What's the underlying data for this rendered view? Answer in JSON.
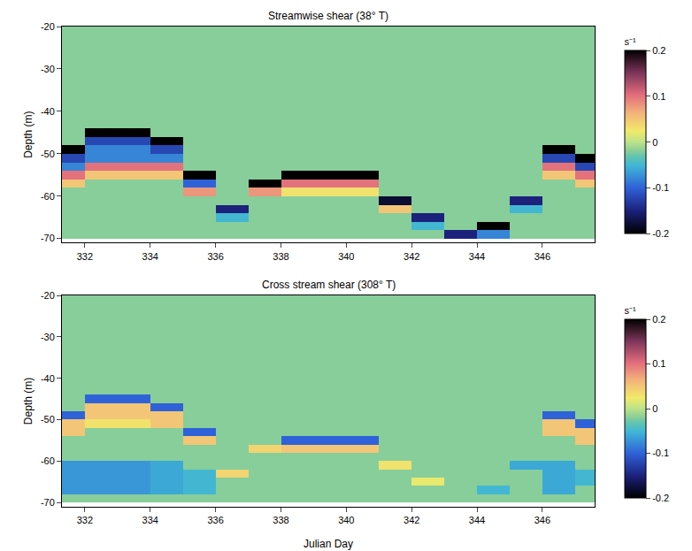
{
  "chart_data": [
    {
      "type": "heatmap",
      "title": "Streamwise shear (38° T)",
      "y_label": "Depth (m)",
      "x": [
        331.5,
        332.5,
        333.5,
        334.5,
        335.5,
        336.5,
        337.5,
        338.5,
        339.5,
        340.5,
        341.5,
        342.5,
        343.5,
        344.5,
        345.5,
        346.5,
        347.5
      ],
      "y": [
        -69,
        -67,
        -65,
        -63,
        -61,
        -59,
        -57,
        -55,
        -53,
        -51,
        -49,
        -47,
        -45,
        -43,
        -41,
        -39,
        -37,
        -35,
        -33,
        -31,
        -29,
        -27,
        -25,
        -23,
        -21
      ],
      "z": [
        [
          -0.02,
          -0.02,
          -0.02,
          -0.02,
          -0.02,
          -0.02,
          -0.02,
          -0.02,
          -0.02,
          -0.02,
          -0.02,
          -0.02,
          -0.15,
          -0.08,
          -0.02,
          -0.02,
          -0.02
        ],
        [
          -0.02,
          -0.02,
          -0.02,
          -0.02,
          -0.02,
          -0.02,
          -0.02,
          -0.02,
          -0.02,
          -0.02,
          -0.02,
          -0.05,
          -0.02,
          -0.2,
          -0.02,
          -0.02,
          -0.02
        ],
        [
          -0.02,
          -0.02,
          -0.02,
          -0.02,
          -0.02,
          -0.05,
          -0.02,
          -0.02,
          -0.02,
          -0.02,
          -0.02,
          -0.15,
          -0.02,
          -0.02,
          -0.02,
          -0.02,
          -0.02
        ],
        [
          -0.02,
          -0.02,
          -0.02,
          -0.02,
          -0.02,
          -0.15,
          -0.02,
          -0.02,
          -0.02,
          -0.02,
          0.05,
          -0.02,
          -0.02,
          -0.02,
          -0.05,
          -0.02,
          -0.02
        ],
        [
          -0.02,
          -0.02,
          -0.02,
          -0.02,
          -0.02,
          -0.02,
          -0.02,
          -0.02,
          -0.02,
          -0.02,
          -0.18,
          -0.02,
          -0.02,
          -0.02,
          -0.15,
          -0.02,
          -0.02
        ],
        [
          -0.02,
          -0.02,
          -0.02,
          -0.02,
          0.08,
          -0.02,
          0.08,
          0.03,
          0.03,
          0.03,
          -0.02,
          -0.02,
          -0.02,
          -0.02,
          -0.02,
          -0.02,
          -0.02
        ],
        [
          0.05,
          -0.02,
          -0.02,
          -0.02,
          -0.1,
          -0.02,
          -0.2,
          0.1,
          0.1,
          0.1,
          -0.02,
          -0.02,
          -0.02,
          -0.02,
          -0.02,
          -0.02,
          0.05
        ],
        [
          0.1,
          0.05,
          0.05,
          0.05,
          -0.2,
          -0.02,
          -0.02,
          -0.2,
          -0.2,
          -0.2,
          -0.02,
          -0.02,
          -0.02,
          -0.02,
          -0.02,
          0.05,
          0.1
        ],
        [
          -0.08,
          0.1,
          0.1,
          0.1,
          -0.02,
          -0.02,
          -0.02,
          -0.02,
          -0.02,
          -0.02,
          -0.02,
          -0.02,
          -0.02,
          -0.02,
          -0.02,
          0.1,
          -0.12
        ],
        [
          -0.12,
          -0.08,
          -0.08,
          -0.08,
          -0.02,
          -0.02,
          -0.02,
          -0.02,
          -0.02,
          -0.02,
          -0.02,
          -0.02,
          -0.02,
          -0.02,
          -0.02,
          -0.12,
          -0.2
        ],
        [
          -0.2,
          -0.08,
          -0.08,
          -0.12,
          -0.02,
          -0.02,
          -0.02,
          -0.02,
          -0.02,
          -0.02,
          -0.02,
          -0.02,
          -0.02,
          -0.02,
          -0.02,
          -0.2,
          -0.02
        ],
        [
          -0.02,
          -0.12,
          -0.12,
          -0.2,
          -0.02,
          -0.02,
          -0.02,
          -0.02,
          -0.02,
          -0.02,
          -0.02,
          -0.02,
          -0.02,
          -0.02,
          -0.02,
          -0.02,
          -0.02
        ],
        [
          -0.02,
          -0.2,
          -0.2,
          -0.02,
          -0.02,
          -0.02,
          -0.02,
          -0.02,
          -0.02,
          -0.02,
          -0.02,
          -0.02,
          -0.02,
          -0.02,
          -0.02,
          -0.02,
          -0.02
        ],
        [
          -0.02,
          -0.02,
          -0.02,
          -0.02,
          -0.02,
          -0.02,
          -0.02,
          -0.02,
          -0.02,
          -0.02,
          -0.02,
          -0.02,
          -0.02,
          -0.02,
          -0.02,
          -0.02,
          -0.02
        ],
        [
          -0.02,
          -0.02,
          -0.02,
          -0.02,
          -0.02,
          -0.02,
          -0.02,
          -0.02,
          -0.02,
          -0.02,
          -0.02,
          -0.02,
          -0.02,
          -0.02,
          -0.02,
          -0.02,
          -0.02
        ],
        [
          -0.02,
          -0.02,
          -0.02,
          -0.02,
          -0.02,
          -0.02,
          -0.02,
          -0.02,
          -0.02,
          -0.02,
          -0.02,
          -0.02,
          -0.02,
          -0.02,
          -0.02,
          -0.02,
          -0.02
        ],
        [
          -0.02,
          -0.02,
          -0.02,
          -0.02,
          -0.02,
          -0.02,
          -0.02,
          -0.02,
          -0.02,
          -0.02,
          -0.02,
          -0.02,
          -0.02,
          -0.02,
          -0.02,
          -0.02,
          -0.02
        ],
        [
          -0.02,
          -0.02,
          -0.02,
          -0.02,
          -0.02,
          -0.02,
          -0.02,
          -0.02,
          -0.02,
          -0.02,
          -0.02,
          -0.02,
          -0.02,
          -0.02,
          -0.02,
          -0.02,
          -0.02
        ],
        [
          -0.02,
          -0.02,
          -0.02,
          -0.02,
          -0.02,
          -0.02,
          -0.02,
          -0.02,
          -0.02,
          -0.02,
          -0.02,
          -0.02,
          -0.02,
          -0.02,
          -0.02,
          -0.02,
          -0.02
        ],
        [
          -0.02,
          -0.02,
          -0.02,
          -0.02,
          -0.02,
          -0.02,
          -0.02,
          -0.02,
          -0.02,
          -0.02,
          -0.02,
          -0.02,
          -0.02,
          -0.02,
          -0.02,
          -0.02,
          -0.02
        ],
        [
          -0.02,
          -0.02,
          -0.02,
          -0.02,
          -0.02,
          -0.02,
          -0.02,
          -0.02,
          -0.02,
          -0.02,
          -0.02,
          -0.02,
          -0.02,
          -0.02,
          -0.02,
          -0.02,
          -0.02
        ],
        [
          -0.02,
          -0.02,
          -0.02,
          -0.02,
          -0.02,
          -0.02,
          -0.02,
          -0.02,
          -0.02,
          -0.02,
          -0.02,
          -0.02,
          -0.02,
          -0.02,
          -0.02,
          -0.02,
          -0.02
        ],
        [
          -0.02,
          -0.02,
          -0.02,
          -0.02,
          -0.02,
          -0.02,
          -0.02,
          -0.02,
          -0.02,
          -0.02,
          -0.02,
          -0.02,
          -0.02,
          -0.02,
          -0.02,
          -0.02,
          -0.02
        ],
        [
          -0.02,
          -0.02,
          -0.02,
          -0.02,
          -0.02,
          -0.02,
          -0.02,
          -0.02,
          -0.02,
          -0.02,
          -0.02,
          -0.02,
          -0.02,
          -0.02,
          -0.02,
          -0.02,
          -0.02
        ],
        [
          -0.02,
          -0.02,
          -0.02,
          -0.02,
          -0.02,
          -0.02,
          -0.02,
          -0.02,
          -0.02,
          -0.02,
          -0.02,
          -0.02,
          -0.02,
          -0.02,
          -0.02,
          -0.02,
          -0.02
        ]
      ],
      "xlim": [
        331.3,
        347.6
      ],
      "xticks": [
        332,
        334,
        336,
        338,
        340,
        342,
        344,
        346
      ],
      "ylim": [
        -71,
        -20
      ],
      "yticks": [
        -70,
        -60,
        -50,
        -40,
        -30,
        -20
      ],
      "colorbar_range": [
        -0.2,
        0.2
      ],
      "colorbar_ticks": [
        -0.2,
        -0.1,
        0,
        0.1,
        0.2
      ],
      "colorbar_title": "s⁻¹"
    },
    {
      "type": "heatmap",
      "title": "Cross stream shear (308° T)",
      "y_label": "Depth (m)",
      "x_label": "Julian Day",
      "x": [
        331.5,
        332.5,
        333.5,
        334.5,
        335.5,
        336.5,
        337.5,
        338.5,
        339.5,
        340.5,
        341.5,
        342.5,
        343.5,
        344.5,
        345.5,
        346.5,
        347.5
      ],
      "y": [
        -69,
        -67,
        -65,
        -63,
        -61,
        -59,
        -57,
        -55,
        -53,
        -51,
        -49,
        -47,
        -45,
        -43,
        -41,
        -39,
        -37,
        -35,
        -33,
        -31,
        -29,
        -27,
        -25,
        -23,
        -21
      ],
      "z": [
        [
          -0.02,
          -0.02,
          -0.02,
          -0.02,
          -0.02,
          -0.02,
          -0.02,
          -0.02,
          -0.02,
          -0.02,
          -0.02,
          -0.02,
          -0.02,
          -0.02,
          -0.02,
          -0.02,
          -0.02
        ],
        [
          -0.07,
          -0.07,
          -0.07,
          -0.06,
          -0.05,
          -0.02,
          -0.02,
          -0.02,
          -0.02,
          -0.02,
          -0.02,
          -0.02,
          -0.02,
          -0.05,
          -0.02,
          -0.06,
          -0.02
        ],
        [
          -0.07,
          -0.07,
          -0.07,
          -0.06,
          -0.05,
          -0.02,
          -0.02,
          -0.02,
          -0.02,
          -0.02,
          -0.02,
          0.02,
          -0.02,
          -0.02,
          -0.02,
          -0.06,
          -0.05
        ],
        [
          -0.07,
          -0.07,
          -0.07,
          -0.06,
          -0.05,
          0.04,
          -0.02,
          -0.02,
          -0.02,
          -0.02,
          -0.02,
          -0.02,
          -0.02,
          -0.02,
          -0.02,
          -0.06,
          -0.05
        ],
        [
          -0.07,
          -0.07,
          -0.07,
          -0.06,
          -0.02,
          -0.02,
          -0.02,
          -0.02,
          -0.02,
          -0.02,
          0.03,
          -0.02,
          -0.02,
          -0.02,
          -0.06,
          -0.06,
          -0.02
        ],
        [
          -0.02,
          -0.02,
          -0.02,
          -0.02,
          -0.02,
          -0.02,
          -0.02,
          -0.02,
          -0.02,
          -0.02,
          -0.02,
          -0.02,
          -0.02,
          -0.02,
          -0.02,
          -0.02,
          -0.02
        ],
        [
          -0.02,
          -0.02,
          -0.02,
          -0.02,
          -0.02,
          -0.02,
          0.04,
          0.05,
          0.05,
          0.05,
          -0.02,
          -0.02,
          -0.02,
          -0.02,
          -0.02,
          -0.02,
          -0.02
        ],
        [
          -0.02,
          -0.02,
          -0.02,
          -0.02,
          0.05,
          -0.02,
          -0.02,
          -0.1,
          -0.1,
          -0.1,
          -0.02,
          -0.02,
          -0.02,
          -0.02,
          -0.02,
          -0.02,
          0.05
        ],
        [
          0.05,
          -0.02,
          -0.02,
          -0.02,
          -0.1,
          -0.02,
          -0.02,
          -0.02,
          -0.02,
          -0.02,
          -0.02,
          -0.02,
          -0.02,
          -0.02,
          -0.02,
          0.05,
          0.05
        ],
        [
          0.05,
          0.03,
          0.03,
          0.05,
          -0.02,
          -0.02,
          -0.02,
          -0.02,
          -0.02,
          -0.02,
          -0.02,
          -0.02,
          -0.02,
          -0.02,
          -0.02,
          0.05,
          -0.1
        ],
        [
          -0.1,
          0.05,
          0.05,
          0.05,
          -0.02,
          -0.02,
          -0.02,
          -0.02,
          -0.02,
          -0.02,
          -0.02,
          -0.02,
          -0.02,
          -0.02,
          -0.02,
          -0.1,
          -0.02
        ],
        [
          -0.02,
          0.05,
          0.05,
          -0.1,
          -0.02,
          -0.02,
          -0.02,
          -0.02,
          -0.02,
          -0.02,
          -0.02,
          -0.02,
          -0.02,
          -0.02,
          -0.02,
          -0.02,
          -0.02
        ],
        [
          -0.02,
          -0.1,
          -0.1,
          -0.02,
          -0.02,
          -0.02,
          -0.02,
          -0.02,
          -0.02,
          -0.02,
          -0.02,
          -0.02,
          -0.02,
          -0.02,
          -0.02,
          -0.02,
          -0.02
        ],
        [
          -0.02,
          -0.02,
          -0.02,
          -0.02,
          -0.02,
          -0.02,
          -0.02,
          -0.02,
          -0.02,
          -0.02,
          -0.02,
          -0.02,
          -0.02,
          -0.02,
          -0.02,
          -0.02,
          -0.02
        ],
        [
          -0.02,
          -0.02,
          -0.02,
          -0.02,
          -0.02,
          -0.02,
          -0.02,
          -0.02,
          -0.02,
          -0.02,
          -0.02,
          -0.02,
          -0.02,
          -0.02,
          -0.02,
          -0.02,
          -0.02
        ],
        [
          -0.02,
          -0.02,
          -0.02,
          -0.02,
          -0.02,
          -0.02,
          -0.02,
          -0.02,
          -0.02,
          -0.02,
          -0.02,
          -0.02,
          -0.02,
          -0.02,
          -0.02,
          -0.02,
          -0.02
        ],
        [
          -0.02,
          -0.02,
          -0.02,
          -0.02,
          -0.02,
          -0.02,
          -0.02,
          -0.02,
          -0.02,
          -0.02,
          -0.02,
          -0.02,
          -0.02,
          -0.02,
          -0.02,
          -0.02,
          -0.02
        ],
        [
          -0.02,
          -0.02,
          -0.02,
          -0.02,
          -0.02,
          -0.02,
          -0.02,
          -0.02,
          -0.02,
          -0.02,
          -0.02,
          -0.02,
          -0.02,
          -0.02,
          -0.02,
          -0.02,
          -0.02
        ],
        [
          -0.02,
          -0.02,
          -0.02,
          -0.02,
          -0.02,
          -0.02,
          -0.02,
          -0.02,
          -0.02,
          -0.02,
          -0.02,
          -0.02,
          -0.02,
          -0.02,
          -0.02,
          -0.02,
          -0.02
        ],
        [
          -0.02,
          -0.02,
          -0.02,
          -0.02,
          -0.02,
          -0.02,
          -0.02,
          -0.02,
          -0.02,
          -0.02,
          -0.02,
          -0.02,
          -0.02,
          -0.02,
          -0.02,
          -0.02,
          -0.02
        ],
        [
          -0.02,
          -0.02,
          -0.02,
          -0.02,
          -0.02,
          -0.02,
          -0.02,
          -0.02,
          -0.02,
          -0.02,
          -0.02,
          -0.02,
          -0.02,
          -0.02,
          -0.02,
          -0.02,
          -0.02
        ],
        [
          -0.02,
          -0.02,
          -0.02,
          -0.02,
          -0.02,
          -0.02,
          -0.02,
          -0.02,
          -0.02,
          -0.02,
          -0.02,
          -0.02,
          -0.02,
          -0.02,
          -0.02,
          -0.02,
          -0.02
        ],
        [
          -0.02,
          -0.02,
          -0.02,
          -0.02,
          -0.02,
          -0.02,
          -0.02,
          -0.02,
          -0.02,
          -0.02,
          -0.02,
          -0.02,
          -0.02,
          -0.02,
          -0.02,
          -0.02,
          -0.02
        ],
        [
          -0.02,
          -0.02,
          -0.02,
          -0.02,
          -0.02,
          -0.02,
          -0.02,
          -0.02,
          -0.02,
          -0.02,
          -0.02,
          -0.02,
          -0.02,
          -0.02,
          -0.02,
          -0.02,
          -0.02
        ],
        [
          -0.02,
          -0.02,
          -0.02,
          -0.02,
          -0.02,
          -0.02,
          -0.02,
          -0.02,
          -0.02,
          -0.02,
          -0.02,
          -0.02,
          -0.02,
          -0.02,
          -0.02,
          -0.02,
          -0.02
        ]
      ],
      "xlim": [
        331.3,
        347.6
      ],
      "xticks": [
        332,
        334,
        336,
        338,
        340,
        342,
        344,
        346
      ],
      "ylim": [
        -71,
        -20
      ],
      "yticks": [
        -70,
        -60,
        -50,
        -40,
        -30,
        -20
      ],
      "colorbar_range": [
        -0.2,
        0.2
      ],
      "colorbar_ticks": [
        -0.2,
        -0.1,
        0,
        0.1,
        0.2
      ],
      "colorbar_title": "s⁻¹"
    }
  ]
}
